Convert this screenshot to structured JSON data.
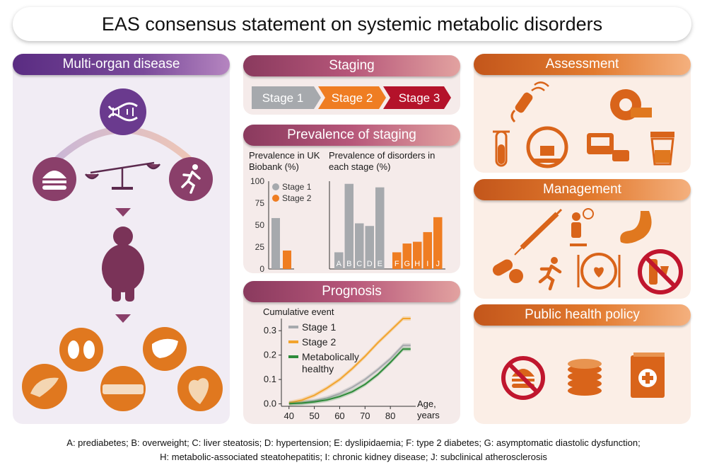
{
  "title": "EAS consensus statement on systemic metabolic disorders",
  "panels": {
    "multi_organ": "Multi-organ disease",
    "staging": "Staging",
    "prevalence": "Prevalence of staging",
    "prognosis": "Prognosis",
    "assessment": "Assessment",
    "management": "Management",
    "policy": "Public health policy"
  },
  "stages": [
    "Stage 1",
    "Stage 2",
    "Stage 3"
  ],
  "colors": {
    "purple": "#5a2c82",
    "rose": "#a94a6e",
    "orange": "#e27a2e",
    "stage1": "#a6a9ad",
    "stage2": "#ef7d22",
    "stage3": "#b4122a",
    "healthy": "#2e8b3a"
  },
  "icons": [
    "dna-icon",
    "burger-icon",
    "scale-icon",
    "runner-icon",
    "body-icon",
    "kidneys-icon",
    "liver-icon",
    "pancreas-icon",
    "artery-icon",
    "heart-icon",
    "ultrasound-icon",
    "tape-measure-icon",
    "test-tube-icon",
    "scanner-icon",
    "blood-pressure-icon",
    "urine-cup-icon",
    "syringe-icon",
    "counselling-icon",
    "stomach-icon",
    "pills-icon",
    "running-icon",
    "plate-icon",
    "no-alcohol-icon",
    "no-junk-food-icon",
    "coins-icon",
    "health-book-icon"
  ],
  "chart_data": [
    {
      "type": "bar",
      "title": "Prevalence in UK Biobank (%)",
      "categories": [
        "Stage 1",
        "Stage 2"
      ],
      "values": [
        58,
        21
      ],
      "ylim": [
        0,
        100
      ],
      "yticks": [
        "0",
        "25",
        "50",
        "75",
        "100"
      ],
      "legend": [
        "Stage 1",
        "Stage 2"
      ]
    },
    {
      "type": "bar",
      "title": "Prevalence of disorders in each stage (%)",
      "categories": [
        "A",
        "B",
        "C",
        "D",
        "E",
        "F",
        "G",
        "H",
        "I",
        "J"
      ],
      "series": [
        {
          "name": "Stage 1",
          "values": [
            19,
            97,
            52,
            49,
            93,
            null,
            null,
            null,
            null,
            null
          ]
        },
        {
          "name": "Stage 2",
          "values": [
            null,
            null,
            null,
            null,
            null,
            19,
            29,
            31,
            42,
            59
          ]
        }
      ],
      "ylim": [
        0,
        100
      ]
    },
    {
      "type": "line",
      "title": "Cumulative event",
      "xlabel": "Age, years",
      "xlim": [
        37,
        90
      ],
      "ylim": [
        -0.01,
        0.35
      ],
      "xticks": [
        "40",
        "50",
        "60",
        "70",
        "80"
      ],
      "yticks": [
        "0.0",
        "0.1",
        "0.2",
        "0.3"
      ],
      "series": [
        {
          "name": "Stage 1",
          "x": [
            40,
            45,
            50,
            55,
            60,
            65,
            70,
            75,
            80,
            85,
            88
          ],
          "y": [
            0.002,
            0.005,
            0.012,
            0.024,
            0.042,
            0.068,
            0.1,
            0.14,
            0.185,
            0.24,
            0.24
          ]
        },
        {
          "name": "Stage 2",
          "x": [
            40,
            45,
            50,
            55,
            60,
            65,
            70,
            75,
            80,
            85,
            88
          ],
          "y": [
            0.004,
            0.015,
            0.035,
            0.065,
            0.1,
            0.145,
            0.195,
            0.25,
            0.3,
            0.35,
            0.35
          ]
        },
        {
          "name": "Metabolically healthy",
          "x": [
            40,
            45,
            50,
            55,
            60,
            65,
            70,
            75,
            80,
            85,
            88
          ],
          "y": [
            0.001,
            0.003,
            0.008,
            0.016,
            0.03,
            0.05,
            0.08,
            0.12,
            0.17,
            0.225,
            0.225
          ]
        }
      ],
      "legend": [
        "Stage 1",
        "Stage 2",
        "Metabolically healthy"
      ]
    }
  ],
  "footer": {
    "line1": "A: prediabetes; B: overweight; C: liver steatosis; D: hypertension; E: dyslipidaemia; F: type 2 diabetes; G: asymptomatic diastolic dysfunction;",
    "line2": "H: metabolic-associated steatohepatitis; I: chronic kidney disease; J: subclinical atherosclerosis"
  }
}
